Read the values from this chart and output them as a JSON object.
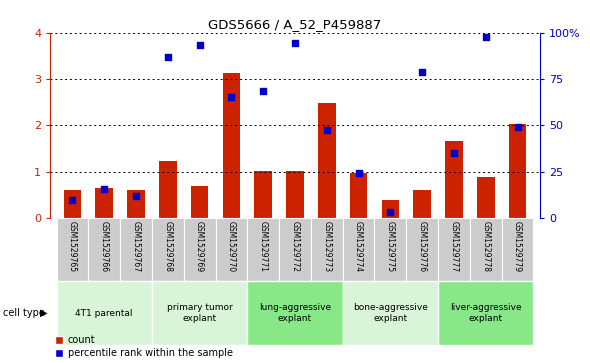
{
  "title": "GDS5666 / A_52_P459887",
  "samples": [
    "GSM1529765",
    "GSM1529766",
    "GSM1529767",
    "GSM1529768",
    "GSM1529769",
    "GSM1529770",
    "GSM1529771",
    "GSM1529772",
    "GSM1529773",
    "GSM1529774",
    "GSM1529775",
    "GSM1529776",
    "GSM1529777",
    "GSM1529778",
    "GSM1529779"
  ],
  "bar_values": [
    0.6,
    0.65,
    0.6,
    1.22,
    0.68,
    3.13,
    1.02,
    1.02,
    2.47,
    0.97,
    0.38,
    0.6,
    1.65,
    0.88,
    2.02
  ],
  "dot_percentile": [
    9.5,
    15.5,
    12.0,
    87.0,
    93.3,
    65.0,
    68.3,
    94.5,
    47.5,
    24.3,
    3.0,
    78.8,
    35.0,
    97.5,
    48.8
  ],
  "bar_color": "#cc2200",
  "dot_color": "#0000cc",
  "ylim_left": [
    0,
    4
  ],
  "ylim_right": [
    0,
    100
  ],
  "yticks_left": [
    0,
    1,
    2,
    3,
    4
  ],
  "yticks_right": [
    0,
    25,
    50,
    75,
    100
  ],
  "groups": [
    {
      "label": "4T1 parental",
      "start": 0,
      "end": 3,
      "color": "#d8f5d8"
    },
    {
      "label": "primary tumor\nexplant",
      "start": 3,
      "end": 6,
      "color": "#d8f5d8"
    },
    {
      "label": "lung-aggressive\nexplant",
      "start": 6,
      "end": 9,
      "color": "#88e888"
    },
    {
      "label": "bone-aggressive\nexplant",
      "start": 9,
      "end": 12,
      "color": "#d8f5d8"
    },
    {
      "label": "liver-aggressive\nexplant",
      "start": 12,
      "end": 15,
      "color": "#88e888"
    }
  ],
  "cell_type_label": "cell type",
  "legend_count_label": "count",
  "legend_percentile_label": "percentile rank within the sample",
  "bg_color": "#ffffff",
  "tick_label_color_left": "#cc2200",
  "tick_label_color_right": "#0000cc",
  "bar_width": 0.55
}
